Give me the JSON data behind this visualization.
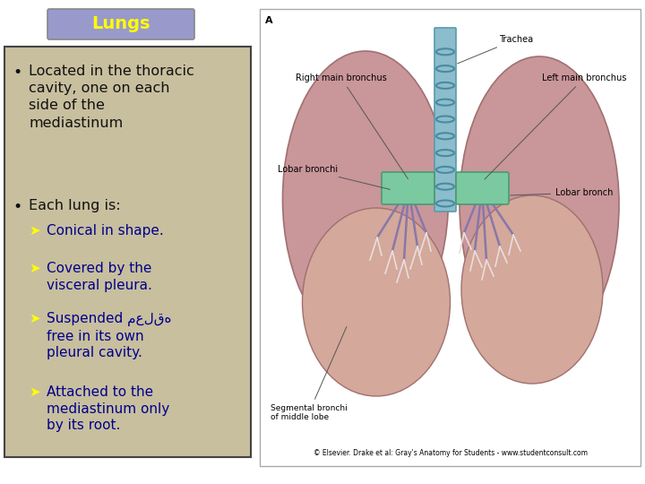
{
  "title": "Lungs",
  "title_color": "#FFFF00",
  "title_box_bg": "#9999CC",
  "title_box_edge": "#888888",
  "slide_bg": "#FFFFFF",
  "text_panel_bg": "#C8BF9E",
  "text_panel_edge": "#444444",
  "bullet_text_color": "#111111",
  "sub_bullet_arrow_color": "#FFFF00",
  "sub_text_color": "#00008B",
  "bullets": [
    "Located in the thoracic\ncavity, one on each\nside of the\nmediastinum",
    "Each lung is:"
  ],
  "sub_bullets": [
    "Conical in shape.",
    "Covered by the\nvisceral pleura.",
    "Suspended معلقه\nfree in its own\npleural cavity.",
    "Attached to the\nmediastinum only\nby its root."
  ],
  "title_fontsize": 14,
  "bullet_fontsize": 11.5,
  "sub_bullet_fontsize": 11,
  "img_border_color": "#AAAAAA",
  "lung_upper_color": "#C9969A",
  "lung_lower_color": "#D4A89A",
  "lung_edge_color": "#A07070",
  "trachea_fill": "#8BBDCC",
  "trachea_edge": "#5A9AAF",
  "trachea_ring": "#4A8A9F",
  "green_fill": "#7BC9A0",
  "green_edge": "#4A9A70",
  "purple_color": "#8877AA",
  "white_fill": "#E8DEDE",
  "annotation_color": "#333333",
  "copyright_text": "© Elsevier. Drake et al: Gray's Anatomy for Students - www.studentconsult.com"
}
